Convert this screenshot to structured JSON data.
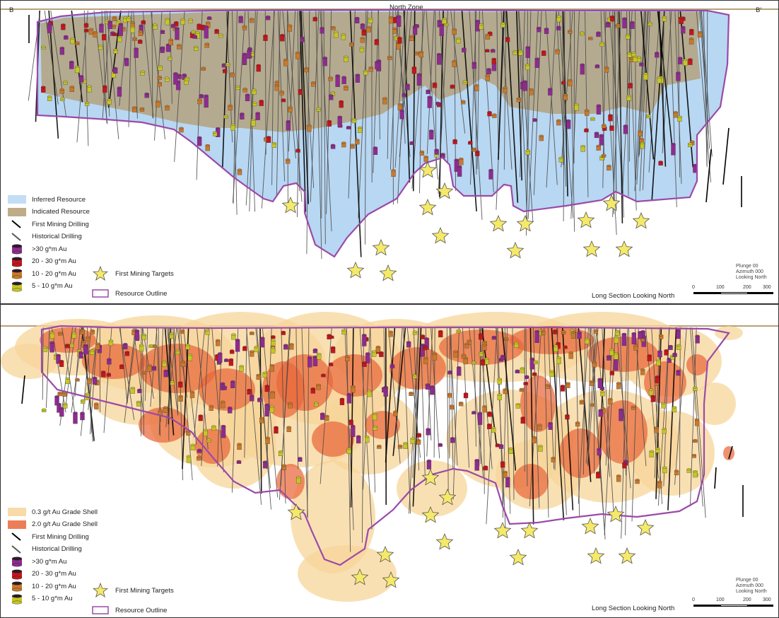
{
  "top": {
    "section_left": "B",
    "section_right": "B'",
    "zone_label": "North Zone",
    "legend": [
      {
        "label": "Inferred Resource",
        "kind": "fill",
        "color": "#b8d7f2"
      },
      {
        "label": "Indicated Resource",
        "kind": "fill",
        "color": "#b39e74"
      },
      {
        "label": "First Mining Drilling",
        "kind": "line",
        "color": "#000000"
      },
      {
        "label": "Historical Drilling",
        "kind": "line",
        "color": "#555555"
      },
      {
        "label": ">30 g*m Au",
        "kind": "cyl",
        "color": "#8e2c8e"
      },
      {
        "label": "20 - 30 g*m Au",
        "kind": "cyl",
        "color": "#c4161c"
      },
      {
        "label": "10 - 20 g*m Au",
        "kind": "cyl",
        "color": "#c9792b"
      },
      {
        "label": "5 - 10 g*m Au",
        "kind": "cyl",
        "color": "#c6c626"
      }
    ],
    "targets_label": "First Mining Targets",
    "outline_label": "Resource Outline",
    "orientation_note": "Plunge 00\nAzimuth 000\nLooking North",
    "view_title": "Long Section Looking North",
    "scale_ticks": [
      "0",
      "100",
      "200",
      "300"
    ]
  },
  "bottom": {
    "legend": [
      {
        "label": "0.3 g/t Au Grade Shell",
        "kind": "fill",
        "color": "#f7d59a"
      },
      {
        "label": "2.0 g/t Au Grade Shell",
        "kind": "fill",
        "color": "#e9673a"
      },
      {
        "label": "First Mining Drilling",
        "kind": "line",
        "color": "#000000"
      },
      {
        "label": "Historical Drilling",
        "kind": "line",
        "color": "#555555"
      },
      {
        "label": ">30 g*m Au",
        "kind": "cyl",
        "color": "#8e2c8e"
      },
      {
        "label": "20 - 30 g*m Au",
        "kind": "cyl",
        "color": "#c4161c"
      },
      {
        "label": "10 - 20 g*m Au",
        "kind": "cyl",
        "color": "#c9792b"
      },
      {
        "label": "5 - 10 g*m Au",
        "kind": "cyl",
        "color": "#c6c626"
      }
    ],
    "targets_label": "First Mining Targets",
    "outline_label": "Resource Outline",
    "orientation_note": "Plunge 00\nAzimuth 000\nLooking North",
    "view_title": "Long Section Looking North",
    "scale_ticks": [
      "0",
      "100",
      "200",
      "300"
    ]
  },
  "colors": {
    "outline": "#9b4aa8",
    "topography": "#8a6a2a",
    "star_fill": "#f5e96a",
    "star_stroke": "#555555"
  }
}
